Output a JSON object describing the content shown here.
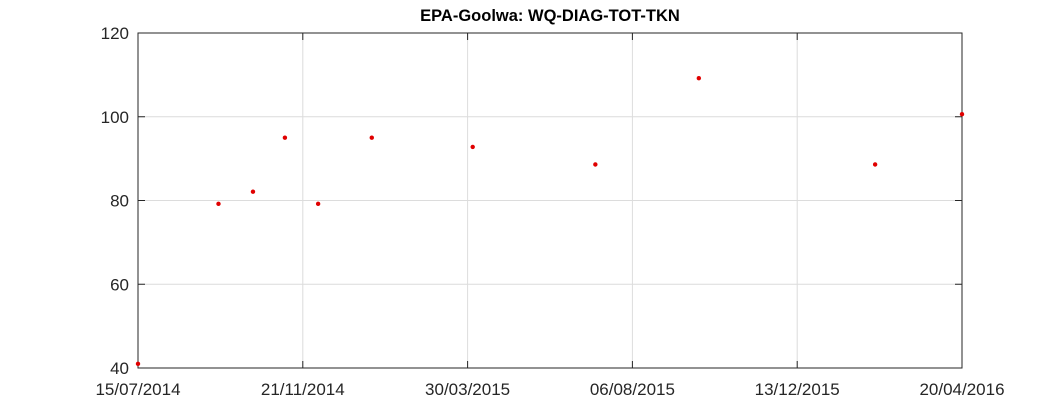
{
  "chart_data": {
    "type": "scatter",
    "title": "EPA-Goolwa: WQ-DIAG-TOT-TKN",
    "xlabel": "",
    "ylabel": "",
    "x_axis": {
      "min": "2014-07-15",
      "max": "2016-04-20",
      "ticks": [
        "2014-07-15",
        "2014-11-21",
        "2015-03-30",
        "2015-08-06",
        "2015-12-13",
        "2016-04-20"
      ],
      "tick_labels": [
        "15/07/2014",
        "21/11/2014",
        "30/03/2015",
        "06/08/2015",
        "13/12/2015",
        "20/04/2016"
      ]
    },
    "y_axis": {
      "min": 40,
      "max": 120,
      "ticks": [
        40,
        60,
        80,
        100,
        120
      ],
      "tick_labels": [
        "40",
        "60",
        "80",
        "100",
        "120"
      ]
    },
    "grid": true,
    "marker_color": "#e00000",
    "series": [
      {
        "points": [
          {
            "x": "2014-07-15",
            "y": 41
          },
          {
            "x": "2014-09-16",
            "y": 79.2
          },
          {
            "x": "2014-10-13",
            "y": 82.1
          },
          {
            "x": "2014-11-07",
            "y": 95
          },
          {
            "x": "2014-12-03",
            "y": 79.2
          },
          {
            "x": "2015-01-14",
            "y": 95
          },
          {
            "x": "2015-04-03",
            "y": 92.8
          },
          {
            "x": "2015-07-08",
            "y": 88.6
          },
          {
            "x": "2015-09-27",
            "y": 109.2
          },
          {
            "x": "2016-02-12",
            "y": 88.6
          },
          {
            "x": "2016-04-20",
            "y": 100.6
          }
        ]
      }
    ]
  }
}
